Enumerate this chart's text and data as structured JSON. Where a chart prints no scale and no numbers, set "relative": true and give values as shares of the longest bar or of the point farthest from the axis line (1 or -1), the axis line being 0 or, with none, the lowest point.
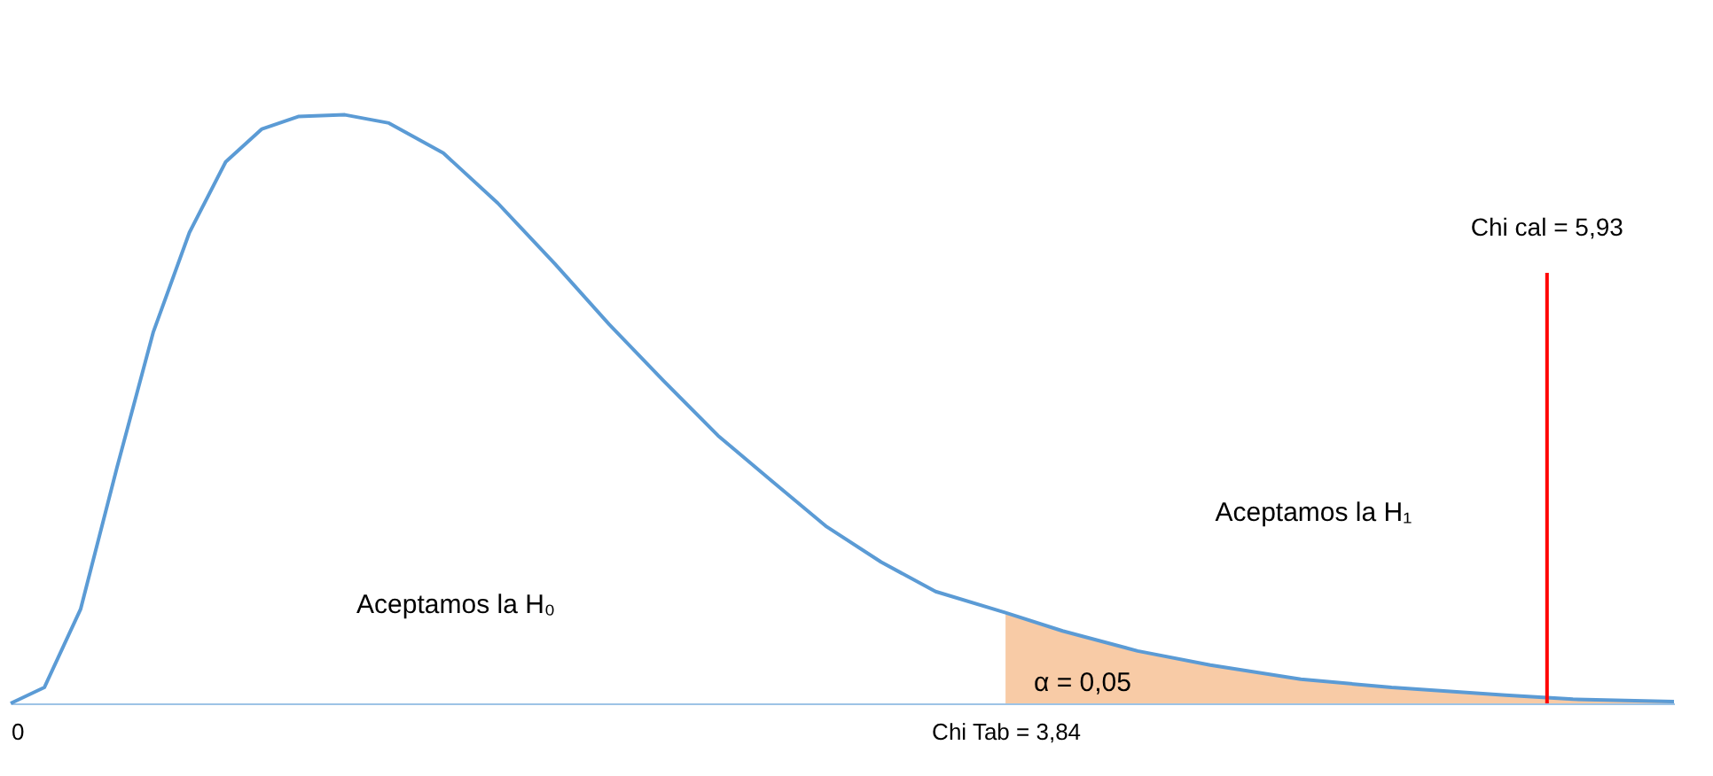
{
  "chart_data": {
    "type": "line",
    "relative": true,
    "xlim": [
      0,
      6.42
    ],
    "xticks": [
      0,
      {
        "value": 3.84,
        "label": "Chi Tab = 3,84"
      }
    ],
    "series": [
      {
        "color": "#5b9bd5",
        "x": [
          0,
          0.13,
          0.27,
          0.41,
          0.55,
          0.69,
          0.83,
          0.97,
          1.11,
          1.29,
          1.46,
          1.67,
          1.88,
          2.1,
          2.31,
          2.52,
          2.73,
          2.94,
          3.15,
          3.36,
          3.57,
          3.84,
          4.06,
          4.35,
          4.63,
          4.98,
          5.33,
          5.77,
          6.03,
          6.42
        ],
        "values": [
          0,
          0.027,
          0.16,
          0.4,
          0.63,
          0.8,
          0.92,
          0.976,
          0.997,
          1,
          0.986,
          0.935,
          0.85,
          0.747,
          0.644,
          0.548,
          0.455,
          0.377,
          0.3,
          0.24,
          0.19,
          0.154,
          0.123,
          0.089,
          0.065,
          0.041,
          0.027,
          0.014,
          0.007,
          0.003
        ]
      },
      {
        "type": "area",
        "color": "#f8cba6",
        "x": [
          3.84,
          4.06,
          4.35,
          4.63,
          4.98,
          5.33,
          5.77,
          6.03,
          6.42
        ],
        "values": [
          0.154,
          0.123,
          0.089,
          0.065,
          0.041,
          0.027,
          0.014,
          0.007,
          0.003
        ]
      }
    ],
    "ref_lines": [
      {
        "axis": "x",
        "value": 5.93,
        "label": "Chi cal = 5,93",
        "color": "#ff0000"
      }
    ],
    "annotations": [
      "Aceptamos la H₀",
      "Aceptamos la H₁",
      "α = 0,05"
    ],
    "grid": false
  }
}
